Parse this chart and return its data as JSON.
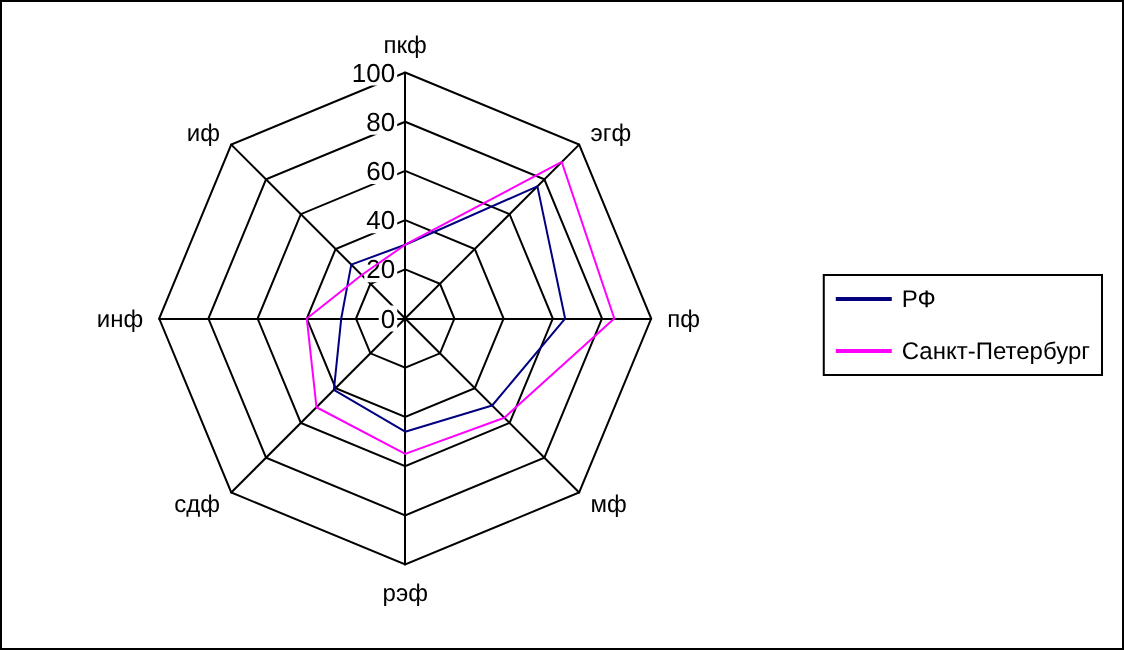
{
  "chart_data": {
    "type": "radar",
    "categories": [
      "пкф",
      "эгф",
      "пф",
      "мф",
      "рэф",
      "сдф",
      "инф",
      "иф"
    ],
    "ylim": [
      0,
      100
    ],
    "yticks": [
      0,
      20,
      40,
      60,
      80,
      100
    ],
    "grid": true,
    "legend": "right",
    "marker": "none",
    "line_style": "solid",
    "series": [
      {
        "name": "РФ",
        "color": "#000080",
        "values": [
          30,
          76,
          65,
          50,
          46,
          41,
          26,
          31
        ]
      },
      {
        "name": "Санкт-Петербург",
        "color": "#ff00ff",
        "values": [
          30,
          90,
          85,
          57,
          55,
          51,
          40,
          25
        ]
      }
    ]
  }
}
